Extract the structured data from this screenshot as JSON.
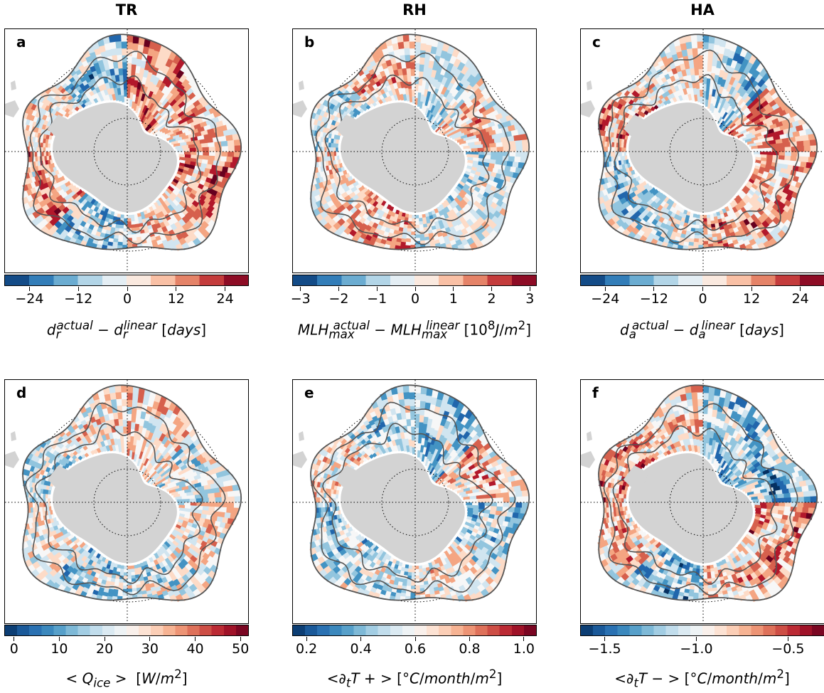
{
  "chart_data": [
    {
      "type": "heatmap",
      "column": "TR",
      "panel": "a",
      "colorbar": {
        "ticks": [
          -24,
          -12,
          0,
          12,
          24
        ],
        "tick_labels": [
          "−24",
          "−12",
          "0",
          "12",
          "24"
        ],
        "range": [
          -30,
          30
        ],
        "levels": 10,
        "label": "d_r^actual − d_r^linear [days]"
      },
      "cmap": "RdBu_r"
    },
    {
      "type": "heatmap",
      "column": "RH",
      "panel": "b",
      "colorbar": {
        "ticks": [
          -3,
          -2,
          -1,
          0,
          1,
          2,
          3
        ],
        "tick_labels": [
          "−3",
          "−2",
          "−1",
          "0",
          "1",
          "2",
          "3"
        ],
        "range": [
          -3.2,
          3.2
        ],
        "levels": 10,
        "label": "MLH_max^actual − MLH_max^linear [10^8 J/m^2]"
      },
      "cmap": "RdBu_r"
    },
    {
      "type": "heatmap",
      "column": "HA",
      "panel": "c",
      "colorbar": {
        "ticks": [
          -24,
          -12,
          0,
          12,
          24
        ],
        "tick_labels": [
          "−24",
          "−12",
          "0",
          "12",
          "24"
        ],
        "range": [
          -30,
          30
        ],
        "levels": 10,
        "label": "d_a^actual − d_a^linear [days]"
      },
      "cmap": "RdBu_r"
    },
    {
      "type": "heatmap",
      "panel": "d",
      "colorbar": {
        "ticks": [
          0,
          10,
          20,
          30,
          40,
          50
        ],
        "tick_labels": [
          "0",
          "10",
          "20",
          "30",
          "40",
          "50"
        ],
        "range": [
          -2,
          52
        ],
        "levels": 20,
        "label": "<Q_ice> [W/m^2]"
      },
      "cmap": "RdBu_r"
    },
    {
      "type": "heatmap",
      "panel": "e",
      "colorbar": {
        "ticks": [
          0.2,
          0.4,
          0.6,
          0.8,
          1.0
        ],
        "tick_labels": [
          "0.2",
          "0.4",
          "0.6",
          "0.8",
          "1.0"
        ],
        "range": [
          0.15,
          1.05
        ],
        "levels": 20,
        "label": "<∂_t T+> [°C/month/m^2]"
      },
      "cmap": "RdBu_r"
    },
    {
      "type": "heatmap",
      "panel": "f",
      "colorbar": {
        "ticks": [
          -1.5,
          -1.0,
          -0.5
        ],
        "tick_labels": [
          "−1.5",
          "−1.0",
          "−0.5"
        ],
        "range": [
          -1.63,
          -0.3
        ],
        "levels": 20,
        "label": "<∂_t T−> [°C/month/m^2]"
      },
      "cmap": "RdBu_r"
    }
  ],
  "columns": {
    "c1": "TR",
    "c2": "RH",
    "c3": "HA"
  },
  "panels": {
    "a": "a",
    "b": "b",
    "c": "c",
    "d": "d",
    "e": "e",
    "f": "f"
  },
  "colors": {
    "land": "#d3d3d3",
    "contour": "#555555"
  }
}
